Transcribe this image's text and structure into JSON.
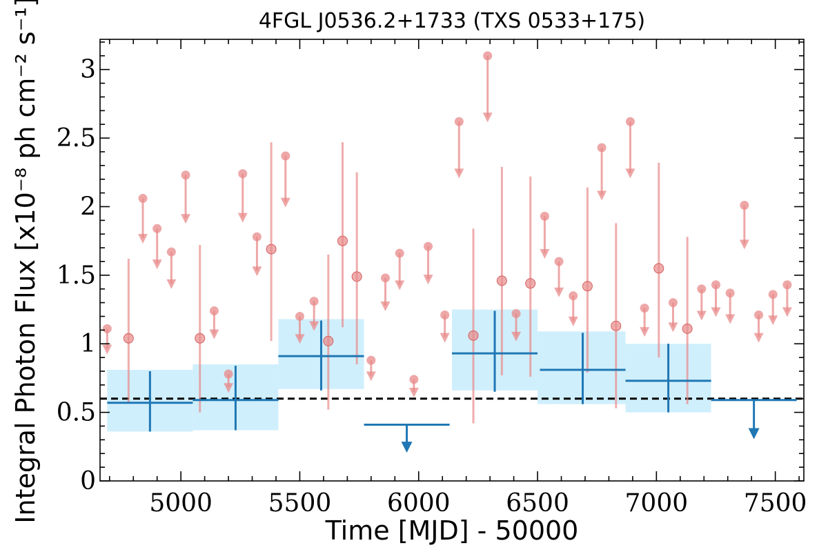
{
  "chart_data": {
    "type": "scatter",
    "title": "4FGL J0536.2+1733 (TXS 0533+175)",
    "xlabel": "Time [MJD] - 50000",
    "ylabel": "Integral Photon Flux [x10⁻⁸ ph cm⁻² s⁻¹]",
    "xlim": [
      4660,
      7620
    ],
    "ylim": [
      0,
      3.22
    ],
    "xticks": [
      5000,
      5500,
      6000,
      6500,
      7000,
      7500
    ],
    "yticks": [
      0,
      0.5,
      1,
      1.5,
      2,
      2.5,
      3
    ],
    "ytick_labels": [
      "0",
      "0.5",
      "1",
      "1.5",
      "2",
      "2.5",
      "3"
    ],
    "grid": false,
    "reference_line": {
      "y": 0.6,
      "style": "dashed",
      "color": "#000000"
    },
    "colors": {
      "fine_bins": "#e88a8a",
      "coarse_bins": "#1f77b4",
      "coarse_band": "#cdeefc"
    },
    "series": [
      {
        "kind": "fine_detections",
        "points": [
          {
            "x": 4780,
            "y": 1.04,
            "yerr_low": 0.47,
            "yerr_high": 0.58
          },
          {
            "x": 5080,
            "y": 1.04,
            "yerr_low": 0.54,
            "yerr_high": 0.68
          },
          {
            "x": 5380,
            "y": 1.69,
            "yerr_low": 0.67,
            "yerr_high": 0.78
          },
          {
            "x": 5620,
            "y": 1.02,
            "yerr_low": 0.5,
            "yerr_high": 0.63
          },
          {
            "x": 5680,
            "y": 1.75,
            "yerr_low": 0.63,
            "yerr_high": 0.72
          },
          {
            "x": 5740,
            "y": 1.49,
            "yerr_low": 0.64,
            "yerr_high": 0.76
          },
          {
            "x": 6230,
            "y": 1.06,
            "yerr_low": 0.64,
            "yerr_high": 0.78
          },
          {
            "x": 6350,
            "y": 1.46,
            "yerr_low": 0.69,
            "yerr_high": 0.83
          },
          {
            "x": 6470,
            "y": 1.44,
            "yerr_low": 0.68,
            "yerr_high": 0.78
          },
          {
            "x": 6710,
            "y": 1.42,
            "yerr_low": 0.63,
            "yerr_high": 0.72
          },
          {
            "x": 6830,
            "y": 1.13,
            "yerr_low": 0.6,
            "yerr_high": 0.75
          },
          {
            "x": 7010,
            "y": 1.55,
            "yerr_low": 0.65,
            "yerr_high": 0.77
          },
          {
            "x": 7130,
            "y": 1.11,
            "yerr_low": 0.55,
            "yerr_high": 0.67
          }
        ]
      },
      {
        "kind": "fine_upper_limits",
        "points": [
          {
            "x": 4690,
            "y": 1.11
          },
          {
            "x": 4840,
            "y": 2.06
          },
          {
            "x": 4900,
            "y": 1.84
          },
          {
            "x": 4960,
            "y": 1.67
          },
          {
            "x": 5020,
            "y": 2.23
          },
          {
            "x": 5140,
            "y": 1.24
          },
          {
            "x": 5200,
            "y": 0.78
          },
          {
            "x": 5260,
            "y": 2.24
          },
          {
            "x": 5320,
            "y": 1.78
          },
          {
            "x": 5440,
            "y": 2.37
          },
          {
            "x": 5500,
            "y": 1.2
          },
          {
            "x": 5560,
            "y": 1.31
          },
          {
            "x": 5800,
            "y": 0.88
          },
          {
            "x": 5860,
            "y": 1.48
          },
          {
            "x": 5920,
            "y": 1.66
          },
          {
            "x": 5980,
            "y": 0.74
          },
          {
            "x": 6040,
            "y": 1.71
          },
          {
            "x": 6110,
            "y": 1.21
          },
          {
            "x": 6170,
            "y": 2.62
          },
          {
            "x": 6290,
            "y": 3.1
          },
          {
            "x": 6410,
            "y": 1.22
          },
          {
            "x": 6530,
            "y": 1.93
          },
          {
            "x": 6590,
            "y": 1.6
          },
          {
            "x": 6650,
            "y": 1.35
          },
          {
            "x": 6770,
            "y": 2.43
          },
          {
            "x": 6890,
            "y": 2.62
          },
          {
            "x": 6950,
            "y": 1.26
          },
          {
            "x": 7070,
            "y": 1.3
          },
          {
            "x": 7190,
            "y": 1.4
          },
          {
            "x": 7250,
            "y": 1.43
          },
          {
            "x": 7310,
            "y": 1.37
          },
          {
            "x": 7370,
            "y": 2.01
          },
          {
            "x": 7430,
            "y": 1.21
          },
          {
            "x": 7490,
            "y": 1.36
          },
          {
            "x": 7550,
            "y": 1.43
          }
        ]
      },
      {
        "kind": "coarse_detections",
        "points": [
          {
            "x": 4870,
            "xerr": 180,
            "y": 0.57,
            "yerr_low": 0.21,
            "yerr_high": 0.23
          },
          {
            "x": 5230,
            "xerr": 180,
            "y": 0.59,
            "yerr_low": 0.22,
            "yerr_high": 0.25
          },
          {
            "x": 5590,
            "xerr": 180,
            "y": 0.91,
            "yerr_low": 0.25,
            "yerr_high": 0.26
          },
          {
            "x": 6320,
            "xerr": 180,
            "y": 0.93,
            "yerr_low": 0.28,
            "yerr_high": 0.31
          },
          {
            "x": 6690,
            "xerr": 180,
            "y": 0.81,
            "yerr_low": 0.25,
            "yerr_high": 0.27
          },
          {
            "x": 7050,
            "xerr": 180,
            "y": 0.73,
            "yerr_low": 0.23,
            "yerr_high": 0.27
          }
        ]
      },
      {
        "kind": "coarse_upper_limits",
        "points": [
          {
            "x": 5950,
            "xerr": 180,
            "y": 0.41
          },
          {
            "x": 7410,
            "xerr": 180,
            "y": 0.59
          }
        ]
      },
      {
        "kind": "coarse_bands",
        "bands": [
          {
            "x0": 4690,
            "x1": 5050,
            "y0": 0.36,
            "y1": 0.81
          },
          {
            "x0": 5050,
            "x1": 5410,
            "y0": 0.37,
            "y1": 0.85
          },
          {
            "x0": 5410,
            "x1": 5770,
            "y0": 0.67,
            "y1": 1.18
          },
          {
            "x0": 6140,
            "x1": 6500,
            "y0": 0.66,
            "y1": 1.25
          },
          {
            "x0": 6500,
            "x1": 6870,
            "y0": 0.56,
            "y1": 1.09
          },
          {
            "x0": 6870,
            "x1": 7230,
            "y0": 0.5,
            "y1": 1.0
          }
        ]
      }
    ]
  }
}
